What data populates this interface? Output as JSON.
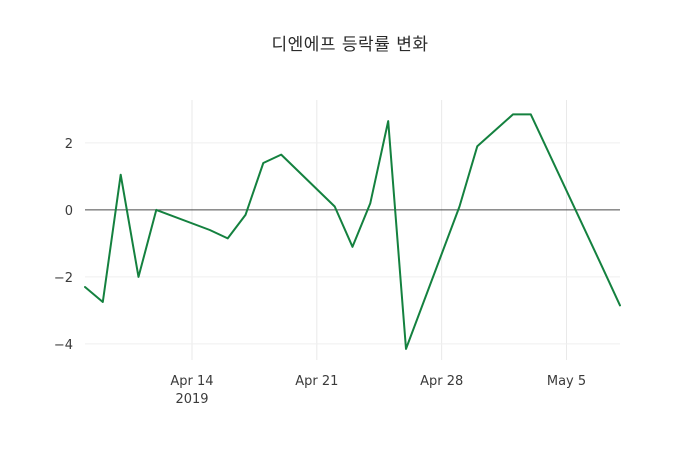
{
  "chart_data": {
    "type": "line",
    "title": "디엔에프 등락률 변화",
    "series_name": "등락률",
    "line_color": "#14813f",
    "background": "#ffffff",
    "grid": true,
    "zero_line": true,
    "legend": "none",
    "x_dates": [
      "Apr 8",
      "Apr 9",
      "Apr 10",
      "Apr 11",
      "Apr 12",
      "Apr 15",
      "Apr 16",
      "Apr 17",
      "Apr 18",
      "Apr 19",
      "Apr 22",
      "Apr 23",
      "Apr 24",
      "Apr 25",
      "Apr 26",
      "Apr 29",
      "Apr 30",
      "May 2",
      "May 3",
      "May 7",
      "May 8"
    ],
    "x_offsets": [
      0,
      1,
      2,
      3,
      4,
      7,
      8,
      9,
      10,
      11,
      14,
      15,
      16,
      17,
      18,
      21,
      22,
      24,
      25,
      29,
      30
    ],
    "values": [
      -2.3,
      -2.75,
      1.05,
      -2.0,
      0.0,
      -0.6,
      -0.85,
      -0.15,
      1.4,
      1.65,
      0.1,
      -1.1,
      0.2,
      2.65,
      -4.15,
      0.1,
      1.9,
      2.85,
      2.85,
      -1.7,
      -2.85
    ],
    "x_ticks": [
      {
        "label": "Apr 14",
        "sublabel": "2019",
        "offset": 6
      },
      {
        "label": "Apr 21",
        "sublabel": "",
        "offset": 13
      },
      {
        "label": "Apr 28",
        "sublabel": "",
        "offset": 20
      },
      {
        "label": "May 5",
        "sublabel": "",
        "offset": 27
      }
    ],
    "y_ticks": [
      {
        "label": "2",
        "value": 2
      },
      {
        "label": "0",
        "value": 0
      },
      {
        "label": "−2",
        "value": -2
      },
      {
        "label": "−4",
        "value": -4
      }
    ],
    "xlim": [
      0,
      30
    ],
    "ylim": [
      -4.48,
      3.28
    ]
  }
}
